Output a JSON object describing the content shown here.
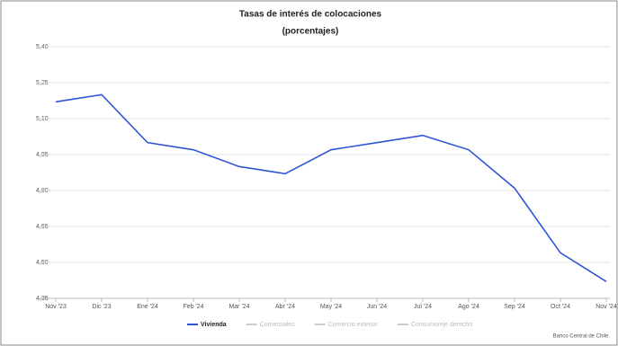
{
  "chart_data": {
    "type": "line",
    "title": "Tasas de interés de colocaciones",
    "subtitle": "(porcentajes)",
    "categories": [
      "Nov '23",
      "Dic '23",
      "Ene '24",
      "Feb '24",
      "Mar '24",
      "Abr '24",
      "May '24",
      "Jun '24",
      "Jul '24",
      "Ago '24",
      "Sep '24",
      "Oct '24",
      "Nov '24"
    ],
    "series": [
      {
        "name": "Vivienda",
        "color": "#2f55d4",
        "values": [
          5.17,
          5.2,
          5.0,
          4.97,
          4.9,
          4.87,
          4.97,
          5.0,
          5.03,
          4.97,
          4.81,
          4.54,
          4.42
        ]
      },
      {
        "name": "Comerciales",
        "color": "#cccccc",
        "values": [
          null,
          null,
          null,
          null,
          null,
          null,
          null,
          null,
          null,
          null,
          null,
          null,
          null
        ]
      },
      {
        "name": "Comercio exterior",
        "color": "#cccccc",
        "values": [
          null,
          null,
          null,
          null,
          null,
          null,
          null,
          null,
          null,
          null,
          null,
          null,
          null
        ]
      },
      {
        "name": "Consumo/eje derecho",
        "color": "#cccccc",
        "values": [
          null,
          null,
          null,
          null,
          null,
          null,
          null,
          null,
          null,
          null,
          null,
          null,
          null
        ]
      }
    ],
    "ylim": [
      4.35,
      5.4
    ],
    "yticks": [
      {
        "value": 4.35,
        "label": "4,35"
      },
      {
        "value": 4.5,
        "label": "4,50"
      },
      {
        "value": 4.65,
        "label": "4,65"
      },
      {
        "value": 4.8,
        "label": "4,80"
      },
      {
        "value": 4.95,
        "label": "4,95"
      },
      {
        "value": 5.1,
        "label": "5,10"
      },
      {
        "value": 5.25,
        "label": "5,25"
      },
      {
        "value": 5.4,
        "label": "5,40"
      }
    ],
    "grid": true,
    "credits": "Banco Central de Chile."
  }
}
